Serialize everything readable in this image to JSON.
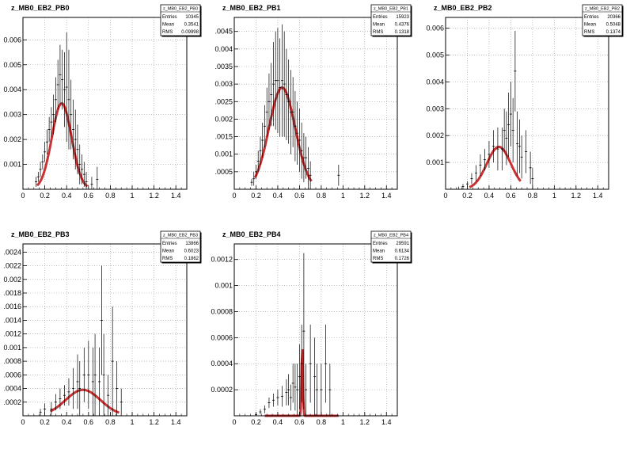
{
  "chart_data": [
    {
      "type": "scatter",
      "title": "z_MB0_EB2_PB0",
      "stats": {
        "name": "z_MB0_EB2_PB0",
        "entries": "10345",
        "mean": "0.3541",
        "rms": "0.09998"
      },
      "stat_labels": {
        "entries": "Entries",
        "mean": "Mean",
        "rms": "RMS"
      },
      "xlim": [
        0,
        1.5
      ],
      "ylim": [
        0,
        0.0069
      ],
      "x_ticks": [
        "0",
        "0.2",
        "0.4",
        "0.6",
        "0.8",
        "1",
        "1.2",
        "1.4"
      ],
      "y_ticks": [
        "0.001",
        "0.002",
        "0.003",
        "0.004",
        "0.005",
        "0.006"
      ],
      "y_tick_values": [
        0.001,
        0.002,
        0.003,
        0.004,
        0.005,
        0.006
      ],
      "grid": true,
      "points": [
        {
          "x": 0.12,
          "y": 0.0003,
          "err": 0.0002
        },
        {
          "x": 0.14,
          "y": 0.0005,
          "err": 0.0002
        },
        {
          "x": 0.16,
          "y": 0.0008,
          "err": 0.0003
        },
        {
          "x": 0.18,
          "y": 0.0011,
          "err": 0.0003
        },
        {
          "x": 0.2,
          "y": 0.0015,
          "err": 0.0004
        },
        {
          "x": 0.22,
          "y": 0.0019,
          "err": 0.0005
        },
        {
          "x": 0.24,
          "y": 0.0024,
          "err": 0.0005
        },
        {
          "x": 0.26,
          "y": 0.0027,
          "err": 0.0006
        },
        {
          "x": 0.28,
          "y": 0.003,
          "err": 0.0008
        },
        {
          "x": 0.3,
          "y": 0.0036,
          "err": 0.0009
        },
        {
          "x": 0.32,
          "y": 0.0042,
          "err": 0.001
        },
        {
          "x": 0.34,
          "y": 0.0046,
          "err": 0.0012
        },
        {
          "x": 0.36,
          "y": 0.0044,
          "err": 0.0012
        },
        {
          "x": 0.38,
          "y": 0.004,
          "err": 0.0015
        },
        {
          "x": 0.4,
          "y": 0.0041,
          "err": 0.0022
        },
        {
          "x": 0.42,
          "y": 0.0036,
          "err": 0.002
        },
        {
          "x": 0.44,
          "y": 0.003,
          "err": 0.0014
        },
        {
          "x": 0.46,
          "y": 0.0024,
          "err": 0.0012
        },
        {
          "x": 0.48,
          "y": 0.002,
          "err": 0.0012
        },
        {
          "x": 0.5,
          "y": 0.0016,
          "err": 0.001
        },
        {
          "x": 0.52,
          "y": 0.001,
          "err": 0.0008
        },
        {
          "x": 0.54,
          "y": 0.0008,
          "err": 0.0006
        },
        {
          "x": 0.56,
          "y": 0.0006,
          "err": 0.0005
        },
        {
          "x": 0.58,
          "y": 0.0003,
          "err": 0.0004
        },
        {
          "x": 0.63,
          "y": 0.0002,
          "err": 0.0003
        },
        {
          "x": 0.68,
          "y": 0.0004,
          "err": 0.0005
        }
      ],
      "fit": {
        "type": "gaussian",
        "amplitude": 0.00345,
        "mean": 0.355,
        "sigma": 0.09,
        "x_range": [
          0.13,
          0.59
        ]
      }
    },
    {
      "type": "scatter",
      "title": "z_MB0_EB2_PB1",
      "stats": {
        "name": "z_MB0_EB2_PB1",
        "entries": "15923",
        "mean": "0.4376",
        "rms": "0.1318"
      },
      "stat_labels": {
        "entries": "Entries",
        "mean": "Mean",
        "rms": "RMS"
      },
      "xlim": [
        0,
        1.5
      ],
      "ylim": [
        0,
        0.0049
      ],
      "x_ticks": [
        "0",
        "0.2",
        "0.4",
        "0.6",
        "0.8",
        "1",
        "1.2",
        "1.4"
      ],
      "y_ticks": [
        ".0005",
        "0.001",
        ".0015",
        "0.002",
        ".0025",
        "0.003",
        ".0035",
        "0.004",
        ".0045"
      ],
      "y_tick_values": [
        0.0005,
        0.001,
        0.0015,
        0.002,
        0.0025,
        0.003,
        0.0035,
        0.004,
        0.0045
      ],
      "grid": true,
      "points": [
        {
          "x": 0.16,
          "y": 0.0002,
          "err": 0.0001
        },
        {
          "x": 0.18,
          "y": 0.0003,
          "err": 0.0002
        },
        {
          "x": 0.2,
          "y": 0.0005,
          "err": 0.0002
        },
        {
          "x": 0.22,
          "y": 0.0008,
          "err": 0.0003
        },
        {
          "x": 0.24,
          "y": 0.0011,
          "err": 0.0004
        },
        {
          "x": 0.26,
          "y": 0.0014,
          "err": 0.0005
        },
        {
          "x": 0.28,
          "y": 0.0018,
          "err": 0.0006
        },
        {
          "x": 0.3,
          "y": 0.0022,
          "err": 0.0007
        },
        {
          "x": 0.32,
          "y": 0.0025,
          "err": 0.0008
        },
        {
          "x": 0.34,
          "y": 0.0027,
          "err": 0.0009
        },
        {
          "x": 0.36,
          "y": 0.003,
          "err": 0.0012
        },
        {
          "x": 0.38,
          "y": 0.0031,
          "err": 0.0014
        },
        {
          "x": 0.4,
          "y": 0.0031,
          "err": 0.0015
        },
        {
          "x": 0.42,
          "y": 0.0029,
          "err": 0.0014
        },
        {
          "x": 0.44,
          "y": 0.0031,
          "err": 0.0016
        },
        {
          "x": 0.46,
          "y": 0.003,
          "err": 0.0015
        },
        {
          "x": 0.48,
          "y": 0.0027,
          "err": 0.0013
        },
        {
          "x": 0.5,
          "y": 0.0025,
          "err": 0.0012
        },
        {
          "x": 0.52,
          "y": 0.0022,
          "err": 0.0012
        },
        {
          "x": 0.54,
          "y": 0.0022,
          "err": 0.001
        },
        {
          "x": 0.56,
          "y": 0.0018,
          "err": 0.001
        },
        {
          "x": 0.58,
          "y": 0.0016,
          "err": 0.0009
        },
        {
          "x": 0.6,
          "y": 0.0014,
          "err": 0.0009
        },
        {
          "x": 0.62,
          "y": 0.0011,
          "err": 0.0008
        },
        {
          "x": 0.64,
          "y": 0.0009,
          "err": 0.0007
        },
        {
          "x": 0.66,
          "y": 0.0009,
          "err": 0.0006
        },
        {
          "x": 0.68,
          "y": 0.0006,
          "err": 0.0006
        },
        {
          "x": 0.7,
          "y": 0.0004,
          "err": 0.0004
        },
        {
          "x": 0.96,
          "y": 0.0004,
          "err": 0.0003
        }
      ],
      "fit": {
        "type": "gaussian",
        "amplitude": 0.0029,
        "mean": 0.44,
        "sigma": 0.12,
        "x_range": [
          0.19,
          0.71
        ]
      }
    },
    {
      "type": "scatter",
      "title": "z_MB0_EB2_PB2",
      "stats": {
        "name": "z_MB0_EB2_PB2",
        "entries": "20366",
        "mean": "0.5048",
        "rms": "0.1374"
      },
      "stat_labels": {
        "entries": "Entries",
        "mean": "Mean",
        "rms": "RMS"
      },
      "xlim": [
        0,
        1.5
      ],
      "ylim": [
        0,
        0.0064
      ],
      "x_ticks": [
        "0",
        "0.2",
        "0.4",
        "0.6",
        "0.8",
        "1",
        "1.2",
        "1.4"
      ],
      "y_ticks": [
        "0.001",
        "0.002",
        "0.003",
        "0.004",
        "0.005",
        "0.006"
      ],
      "y_tick_values": [
        0.001,
        0.002,
        0.003,
        0.004,
        0.005,
        0.006
      ],
      "grid": true,
      "points": [
        {
          "x": 0.12,
          "y": 0.0,
          "err": 0.0001
        },
        {
          "x": 0.16,
          "y": 0.0001,
          "err": 0.0001
        },
        {
          "x": 0.2,
          "y": 0.0002,
          "err": 0.0001
        },
        {
          "x": 0.24,
          "y": 0.0004,
          "err": 0.0002
        },
        {
          "x": 0.28,
          "y": 0.0006,
          "err": 0.0003
        },
        {
          "x": 0.32,
          "y": 0.0009,
          "err": 0.0004
        },
        {
          "x": 0.36,
          "y": 0.0011,
          "err": 0.0004
        },
        {
          "x": 0.4,
          "y": 0.0013,
          "err": 0.0005
        },
        {
          "x": 0.44,
          "y": 0.0016,
          "err": 0.0006
        },
        {
          "x": 0.48,
          "y": 0.0015,
          "err": 0.0008
        },
        {
          "x": 0.52,
          "y": 0.0015,
          "err": 0.0008
        },
        {
          "x": 0.54,
          "y": 0.0022,
          "err": 0.0008
        },
        {
          "x": 0.56,
          "y": 0.0019,
          "err": 0.001
        },
        {
          "x": 0.58,
          "y": 0.0024,
          "err": 0.0012
        },
        {
          "x": 0.6,
          "y": 0.0028,
          "err": 0.0012
        },
        {
          "x": 0.62,
          "y": 0.0022,
          "err": 0.0012
        },
        {
          "x": 0.64,
          "y": 0.0044,
          "err": 0.0015
        },
        {
          "x": 0.66,
          "y": 0.0017,
          "err": 0.0012
        },
        {
          "x": 0.68,
          "y": 0.0016,
          "err": 0.001
        },
        {
          "x": 0.7,
          "y": 0.0012,
          "err": 0.0008
        },
        {
          "x": 0.74,
          "y": 0.0014,
          "err": 0.0008
        },
        {
          "x": 0.78,
          "y": 0.0008,
          "err": 0.0006
        },
        {
          "x": 0.8,
          "y": 0.0004,
          "err": 0.0004
        }
      ],
      "fit": {
        "type": "gaussian",
        "amplitude": 0.00158,
        "mean": 0.49,
        "sigma": 0.11,
        "x_range": [
          0.22,
          0.69
        ]
      }
    },
    {
      "type": "scatter",
      "title": "z_MB0_EB2_PB3",
      "stats": {
        "name": "z_MB0_EB2_PB3",
        "entries": "13866",
        "mean": "0.6023",
        "rms": "0.1862"
      },
      "stat_labels": {
        "entries": "Entries",
        "mean": "Mean",
        "rms": "RMS"
      },
      "xlim": [
        0,
        1.5
      ],
      "ylim": [
        0,
        0.00252
      ],
      "x_ticks": [
        "0",
        "0.2",
        "0.4",
        "0.6",
        "0.8",
        "1",
        "1.2",
        "1.4"
      ],
      "y_ticks": [
        ".0002",
        ".0004",
        ".0006",
        ".0008",
        "0.001",
        ".0012",
        ".0014",
        ".0016",
        ".0018",
        "0.002",
        ".0022",
        ".0024"
      ],
      "y_tick_values": [
        0.0002,
        0.0004,
        0.0006,
        0.0008,
        0.001,
        0.0012,
        0.0014,
        0.0016,
        0.0018,
        0.002,
        0.0022,
        0.0024
      ],
      "grid": true,
      "points": [
        {
          "x": 0.16,
          "y": 5e-05,
          "err": 5e-05
        },
        {
          "x": 0.2,
          "y": 0.0001,
          "err": 8e-05
        },
        {
          "x": 0.26,
          "y": 0.0001,
          "err": 0.0001
        },
        {
          "x": 0.3,
          "y": 0.0002,
          "err": 0.00012
        },
        {
          "x": 0.34,
          "y": 0.00025,
          "err": 0.00015
        },
        {
          "x": 0.38,
          "y": 0.0003,
          "err": 0.00015
        },
        {
          "x": 0.42,
          "y": 0.00035,
          "err": 0.0002
        },
        {
          "x": 0.46,
          "y": 0.0004,
          "err": 0.0003
        },
        {
          "x": 0.5,
          "y": 0.0005,
          "err": 0.0004
        },
        {
          "x": 0.52,
          "y": 0.0004,
          "err": 0.0004
        },
        {
          "x": 0.56,
          "y": 0.0006,
          "err": 0.0004
        },
        {
          "x": 0.6,
          "y": 0.0006,
          "err": 0.0005
        },
        {
          "x": 0.64,
          "y": 0.0005,
          "err": 0.0005
        },
        {
          "x": 0.66,
          "y": 0.0006,
          "err": 0.0006
        },
        {
          "x": 0.7,
          "y": 0.0005,
          "err": 0.0005
        },
        {
          "x": 0.72,
          "y": 0.0014,
          "err": 0.0008
        },
        {
          "x": 0.74,
          "y": 0.0006,
          "err": 0.0006
        },
        {
          "x": 0.78,
          "y": 0.0003,
          "err": 0.0003
        },
        {
          "x": 0.82,
          "y": 0.0008,
          "err": 0.0008
        },
        {
          "x": 0.86,
          "y": 0.0004,
          "err": 0.0004
        },
        {
          "x": 0.9,
          "y": 0.0002,
          "err": 0.0002
        }
      ],
      "fit": {
        "type": "gaussian",
        "amplitude": 0.00038,
        "mean": 0.55,
        "sigma": 0.16,
        "x_range": [
          0.25,
          0.88
        ]
      }
    },
    {
      "type": "scatter",
      "title": "z_MB0_EB2_PB4",
      "stats": {
        "name": "z_MB0_EB2_PB4",
        "entries": "29591",
        "mean": "0.6134",
        "rms": "0.1726"
      },
      "stat_labels": {
        "entries": "Entries",
        "mean": "Mean",
        "rms": "RMS"
      },
      "xlim": [
        0,
        1.5
      ],
      "ylim": [
        0,
        0.00132
      ],
      "x_ticks": [
        "0",
        "0.2",
        "0.4",
        "0.6",
        "0.8",
        "1",
        "1.2",
        "1.4"
      ],
      "y_ticks": [
        "0.0002",
        "0.0004",
        "0.0006",
        "0.0008",
        "0.001",
        "0.0012"
      ],
      "y_tick_values": [
        0.0002,
        0.0004,
        0.0006,
        0.0008,
        0.001,
        0.0012
      ],
      "grid": true,
      "points": [
        {
          "x": 0.2,
          "y": 1e-05,
          "err": 1e-05
        },
        {
          "x": 0.24,
          "y": 3e-05,
          "err": 2e-05
        },
        {
          "x": 0.28,
          "y": 5e-05,
          "err": 3e-05
        },
        {
          "x": 0.32,
          "y": 0.0001,
          "err": 4e-05
        },
        {
          "x": 0.36,
          "y": 0.00012,
          "err": 5e-05
        },
        {
          "x": 0.4,
          "y": 0.00014,
          "err": 6e-05
        },
        {
          "x": 0.44,
          "y": 0.00015,
          "err": 8e-05
        },
        {
          "x": 0.48,
          "y": 0.00018,
          "err": 0.0001
        },
        {
          "x": 0.5,
          "y": 0.0002,
          "err": 0.00012
        },
        {
          "x": 0.52,
          "y": 0.00014,
          "err": 0.0001
        },
        {
          "x": 0.54,
          "y": 0.00025,
          "err": 0.00015
        },
        {
          "x": 0.56,
          "y": 0.00022,
          "err": 0.00018
        },
        {
          "x": 0.58,
          "y": 0.0002,
          "err": 0.0002
        },
        {
          "x": 0.6,
          "y": 0.0003,
          "err": 0.00025
        },
        {
          "x": 0.62,
          "y": 0.0004,
          "err": 0.0003
        },
        {
          "x": 0.64,
          "y": 0.00065,
          "err": 0.0006
        },
        {
          "x": 0.66,
          "y": 0.0002,
          "err": 0.0002
        },
        {
          "x": 0.7,
          "y": 0.0004,
          "err": 0.0003
        },
        {
          "x": 0.74,
          "y": 0.0003,
          "err": 0.0003
        },
        {
          "x": 0.76,
          "y": 0.0002,
          "err": 0.0002
        },
        {
          "x": 0.8,
          "y": 0.0002,
          "err": 0.0002
        },
        {
          "x": 0.84,
          "y": 0.0004,
          "err": 0.0003
        },
        {
          "x": 0.88,
          "y": 0.0002,
          "err": 0.0002
        }
      ],
      "fit": {
        "type": "spike",
        "peak": 0.00055,
        "mean": 0.625,
        "sigma": 0.006,
        "x_range": [
          0.28,
          0.96
        ]
      }
    }
  ],
  "colors": {
    "fit": "#c83232",
    "data": "#000000",
    "grid": "#9a9a9a",
    "frame": "#000000"
  }
}
